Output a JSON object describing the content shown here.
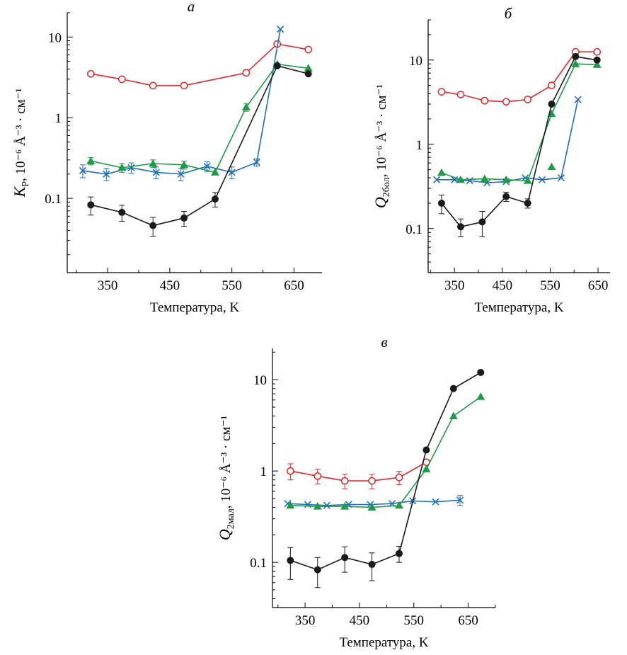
{
  "chart_data": [
    {
      "type": "line",
      "panel_label": "а",
      "xlabel": "Температура, K",
      "ylabel_sym": "K",
      "ylabel_sub": "P",
      "ylabel_rest": ", 10⁻⁶ Å⁻³ · см⁻¹",
      "xlim": [
        285,
        695
      ],
      "ylim": [
        0.012,
        20
      ],
      "yscale": "log",
      "xticks": [
        350,
        450,
        550,
        650
      ],
      "xtick_labels": [
        "350",
        "450",
        "550",
        "650"
      ],
      "yticks": [
        0.1,
        1,
        10
      ],
      "ytick_labels": [
        "0.1",
        "1",
        "10"
      ],
      "series": [
        {
          "color": "#e3262b",
          "marker": "open-circle",
          "x": [
            323,
            373,
            423,
            473,
            573,
            623,
            673
          ],
          "y": [
            3.5,
            3.0,
            2.5,
            2.5,
            3.6,
            8.2,
            7.0
          ],
          "err": [
            0,
            0,
            0,
            0,
            0,
            0,
            0
          ]
        },
        {
          "color": "#1e6fb9",
          "marker": "x",
          "x": [
            310,
            348,
            388,
            428,
            468,
            510,
            550,
            590,
            628
          ],
          "y": [
            0.22,
            0.2,
            0.24,
            0.21,
            0.2,
            0.25,
            0.21,
            0.28,
            12.5
          ],
          "err": [
            0.04,
            0.035,
            0.035,
            0.035,
            0.035,
            0.035,
            0.035,
            0.03,
            0
          ]
        },
        {
          "color": "#1f9a48",
          "marker": "triangle",
          "x": [
            323,
            373,
            423,
            473,
            523,
            573,
            623,
            673
          ],
          "y": [
            0.29,
            0.24,
            0.27,
            0.26,
            0.21,
            1.35,
            4.6,
            4.1
          ],
          "err": [
            0.03,
            0.03,
            0.03,
            0.03,
            0,
            0.15,
            0,
            0
          ]
        },
        {
          "color": "#1a1a1a",
          "marker": "filled-circle",
          "x": [
            323,
            373,
            423,
            473,
            523,
            623,
            673
          ],
          "y": [
            0.083,
            0.067,
            0.046,
            0.057,
            0.098,
            4.4,
            3.5
          ],
          "err": [
            0.021,
            0.015,
            0.012,
            0.012,
            0.02,
            0,
            0
          ]
        }
      ]
    },
    {
      "type": "line",
      "panel_label": "б",
      "xlabel": "Температура, K",
      "ylabel_sym": "Q",
      "ylabel_sub": "2бол",
      "ylabel_rest": ", 10⁻⁶ Å⁻³ · см⁻¹",
      "xlim": [
        295,
        675
      ],
      "ylim": [
        0.03,
        30
      ],
      "yscale": "log",
      "xticks": [
        350,
        450,
        550,
        650
      ],
      "xtick_labels": [
        "350",
        "450",
        "550",
        "650"
      ],
      "yticks": [
        0.1,
        1,
        10
      ],
      "ytick_labels": [
        "0.1",
        "1",
        "10"
      ],
      "series": [
        {
          "color": "#e3262b",
          "marker": "open-circle",
          "x": [
            323,
            363,
            413,
            458,
            503,
            553,
            603,
            648
          ],
          "y": [
            4.2,
            3.9,
            3.3,
            3.2,
            3.4,
            5.0,
            12.5,
            12.5
          ],
          "err": [
            0,
            0,
            0,
            0,
            0,
            0,
            0,
            0
          ]
        },
        {
          "color": "#1e6fb9",
          "marker": "x",
          "x": [
            313,
            350,
            382,
            418,
            458,
            498,
            533,
            573,
            608
          ],
          "y": [
            0.38,
            0.38,
            0.37,
            0.35,
            0.36,
            0.4,
            0.38,
            0.4,
            3.4
          ],
          "err": [
            0,
            0,
            0,
            0,
            0,
            0,
            0,
            0,
            0
          ]
        },
        {
          "color": "#1f9a48",
          "marker": "triangle",
          "x": [
            323,
            363,
            413,
            458,
            503,
            553,
            603,
            648
          ],
          "y": [
            0.46,
            0.38,
            0.39,
            0.38,
            0.37,
            2.3,
            9.0,
            8.8
          ],
          "err": [
            0,
            0,
            0,
            0,
            0,
            0,
            0,
            0
          ]
        },
        {
          "color": "#1a1a1a",
          "marker": "filled-circle",
          "x": [
            323,
            363,
            408,
            458,
            503,
            553,
            603,
            648
          ],
          "y": [
            0.2,
            0.105,
            0.12,
            0.24,
            0.2,
            3.0,
            11.0,
            10.0
          ],
          "err": [
            0.05,
            0.025,
            0.04,
            0.03,
            0.025,
            0,
            0,
            0
          ]
        }
      ],
      "extra_points": [
        {
          "color": "#1f9a48",
          "marker": "triangle",
          "x": 553,
          "y": 0.54
        }
      ]
    },
    {
      "type": "line",
      "panel_label": "в",
      "xlabel": "Температура, K",
      "ylabel_sym": "Q",
      "ylabel_sub": "2мал",
      "ylabel_rest": ", 10⁻⁶ Å⁻³ · см⁻¹",
      "xlim": [
        290,
        700
      ],
      "ylim": [
        0.032,
        22
      ],
      "yscale": "log",
      "xticks": [
        350,
        450,
        550,
        650
      ],
      "xtick_labels": [
        "350",
        "450",
        "550",
        "650"
      ],
      "yticks": [
        0.1,
        1,
        10
      ],
      "ytick_labels": [
        "0.1",
        "1",
        "10"
      ],
      "series": [
        {
          "color": "#e3262b",
          "marker": "open-circle",
          "x": [
            323,
            373,
            423,
            473,
            523,
            573
          ],
          "y": [
            1.0,
            0.88,
            0.78,
            0.78,
            0.85,
            1.25
          ],
          "err": [
            0.2,
            0.16,
            0.14,
            0.14,
            0.14,
            0
          ]
        },
        {
          "color": "#1e6fb9",
          "marker": "x",
          "x": [
            318,
            355,
            390,
            430,
            470,
            510,
            548,
            590,
            635
          ],
          "y": [
            0.44,
            0.43,
            0.42,
            0.43,
            0.43,
            0.44,
            0.47,
            0.46,
            0.48
          ],
          "err": [
            0,
            0,
            0,
            0,
            0,
            0,
            0,
            0,
            0.06
          ]
        },
        {
          "color": "#1f9a48",
          "marker": "triangle",
          "x": [
            323,
            373,
            423,
            473,
            523,
            573,
            623,
            673
          ],
          "y": [
            0.42,
            0.41,
            0.41,
            0.4,
            0.42,
            1.05,
            4.0,
            6.5
          ],
          "err": [
            0,
            0,
            0,
            0,
            0,
            0,
            0,
            0
          ]
        },
        {
          "color": "#1a1a1a",
          "marker": "filled-circle",
          "x": [
            323,
            373,
            423,
            473,
            523,
            573,
            623,
            673
          ],
          "y": [
            0.105,
            0.083,
            0.113,
            0.095,
            0.125,
            1.7,
            8.0,
            12.0
          ],
          "err": [
            0.04,
            0.03,
            0.035,
            0.032,
            0.025,
            0,
            0,
            0
          ]
        }
      ]
    }
  ]
}
